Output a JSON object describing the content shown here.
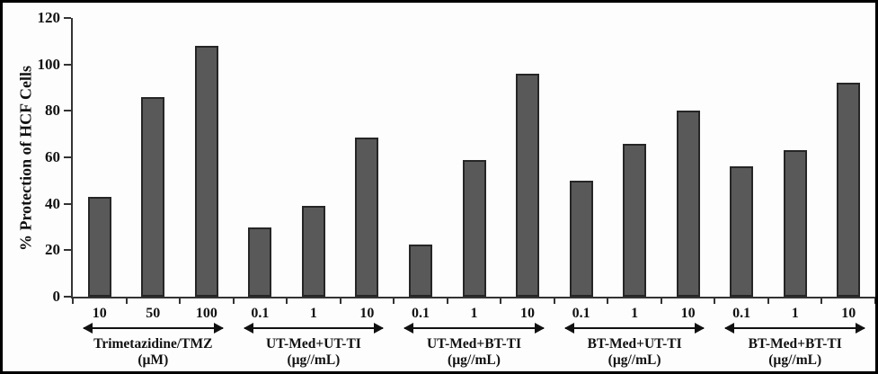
{
  "figure": {
    "background": "#fdfdfd",
    "frame_color": "#000000",
    "bar_fill_color": "#595959",
    "bar_border_color": "#262626",
    "axis_color": "#333333",
    "text_color": "#111111"
  },
  "chart_data": {
    "type": "bar",
    "title": "",
    "xlabel": "",
    "ylabel": "% Protection of HCF Cells",
    "ylim": [
      0,
      120
    ],
    "yticks": [
      0,
      20,
      40,
      60,
      80,
      100,
      120
    ],
    "grid": false,
    "legend": "none",
    "bar_color": "#595959",
    "groups": [
      {
        "label": "Trimetazidine/TMZ",
        "unit": "(µM)",
        "categories": [
          "10",
          "50",
          "100"
        ],
        "values": [
          43,
          86,
          108
        ]
      },
      {
        "label": "UT-Med+UT-TI",
        "unit": "(µg//mL)",
        "categories": [
          "0.1",
          "1",
          "10"
        ],
        "values": [
          30,
          39,
          68.5
        ]
      },
      {
        "label": "UT-Med+BT-TI",
        "unit": "(µg//mL)",
        "categories": [
          "0.1",
          "1",
          "10"
        ],
        "values": [
          22.5,
          59,
          96
        ]
      },
      {
        "label": "BT-Med+UT-TI",
        "unit": "(µg//mL)",
        "categories": [
          "0.1",
          "1",
          "10"
        ],
        "values": [
          50,
          66,
          80
        ]
      },
      {
        "label": "BT-Med+BT-TI",
        "unit": "(µg//mL)",
        "categories": [
          "0.1",
          "1",
          "10"
        ],
        "values": [
          56,
          63,
          92
        ]
      }
    ]
  }
}
